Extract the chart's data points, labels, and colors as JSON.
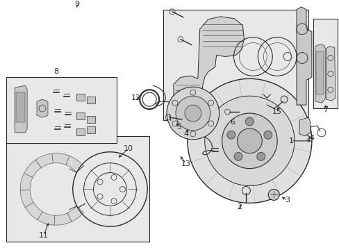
{
  "bg": "#ffffff",
  "lc": "#2a2a2a",
  "box_fc": "#e8e8e8",
  "box_ec": "#2a2a2a",
  "fig_w": 4.89,
  "fig_h": 3.6,
  "dpi": 100,
  "xlim": [
    0,
    489
  ],
  "ylim": [
    0,
    360
  ]
}
